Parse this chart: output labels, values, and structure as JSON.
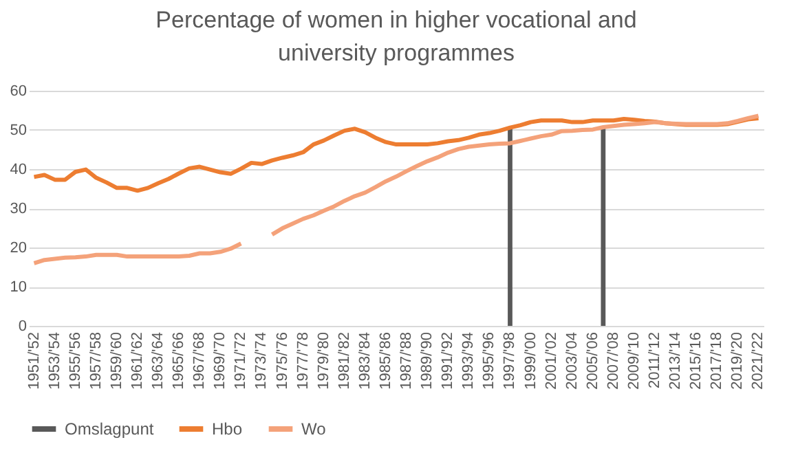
{
  "chart_data": {
    "type": "line",
    "title": "Percentage of women in higher vocational and university programmes",
    "categories": [
      "1951/'52",
      null,
      "1953/'54",
      null,
      "1955/'56",
      null,
      "1957/'58",
      null,
      "1959/'60",
      null,
      "1961/'62",
      null,
      "1963/'64",
      null,
      "1965/'66",
      null,
      "1967/'68",
      null,
      "1969/'70",
      null,
      "1971/'72",
      null,
      "1973/'74",
      null,
      "1975/'76",
      null,
      "1977/'78",
      null,
      "1979/'80",
      null,
      "1981/'82",
      null,
      "1983/'84",
      null,
      "1985/'86",
      null,
      "1987/'88",
      null,
      "1989/'90",
      null,
      "1991/'92",
      null,
      "1993/'94",
      null,
      "1995/'96",
      null,
      "1997/'98",
      null,
      "1999/'00",
      null,
      "2001/'02",
      null,
      "2003/'04",
      null,
      "2005/'06",
      null,
      "2007/'08",
      null,
      "2009/'10",
      null,
      "2011/'12",
      null,
      "2013/'14",
      null,
      "2015/'16",
      null,
      "2017/'18",
      null,
      "2019/'20",
      null,
      "2021/'22"
    ],
    "series": [
      {
        "name": "Omslagpunt",
        "type": "bar",
        "color": "#595959",
        "values": [
          null,
          null,
          null,
          null,
          null,
          null,
          null,
          null,
          null,
          null,
          null,
          null,
          null,
          null,
          null,
          null,
          null,
          null,
          null,
          null,
          null,
          null,
          null,
          null,
          null,
          null,
          null,
          null,
          null,
          null,
          null,
          null,
          null,
          null,
          null,
          null,
          null,
          null,
          null,
          null,
          null,
          null,
          null,
          null,
          null,
          null,
          50.5,
          null,
          null,
          null,
          null,
          null,
          null,
          null,
          null,
          50.5,
          null,
          null,
          null,
          null,
          null,
          null,
          null,
          null,
          null,
          null,
          null,
          null,
          null,
          null,
          null
        ]
      },
      {
        "name": "Hbo",
        "color": "#ed7d31",
        "values": [
          38.0,
          38.5,
          37.3,
          37.3,
          39.3,
          39.9,
          37.8,
          36.6,
          35.2,
          35.2,
          34.5,
          35.2,
          36.4,
          37.5,
          38.9,
          40.2,
          40.6,
          39.9,
          39.2,
          38.8,
          40.1,
          41.6,
          41.3,
          42.2,
          42.9,
          43.5,
          44.3,
          46.3,
          47.3,
          48.6,
          49.8,
          50.3,
          49.4,
          48.0,
          46.9,
          46.3,
          46.3,
          46.3,
          46.3,
          46.6,
          47.1,
          47.4,
          48.0,
          48.8,
          49.2,
          49.8,
          50.6,
          51.2,
          52.0,
          52.4,
          52.4,
          52.4,
          52.0,
          52.0,
          52.4,
          52.4,
          52.4,
          52.8,
          52.6,
          52.3,
          52.1,
          51.7,
          51.5,
          51.3,
          51.3,
          51.3,
          51.3,
          51.5,
          52.1,
          52.7,
          53.0
        ]
      },
      {
        "name": "Wo",
        "color": "#f4a27a",
        "values": [
          16.0,
          16.8,
          17.1,
          17.4,
          17.5,
          17.7,
          18.1,
          18.1,
          18.1,
          17.7,
          17.7,
          17.7,
          17.7,
          17.7,
          17.7,
          17.9,
          18.5,
          18.5,
          18.9,
          19.7,
          21.0,
          null,
          null,
          23.3,
          24.9,
          26.1,
          27.3,
          28.2,
          29.4,
          30.5,
          31.9,
          33.1,
          34.0,
          35.4,
          36.9,
          38.1,
          39.5,
          40.8,
          42.0,
          43.0,
          44.2,
          45.1,
          45.7,
          46.0,
          46.3,
          46.5,
          46.6,
          47.2,
          47.8,
          48.4,
          48.8,
          49.7,
          49.8,
          50.0,
          50.1,
          50.7,
          51.0,
          51.3,
          51.5,
          51.7,
          52.0,
          51.7,
          51.6,
          51.5,
          51.5,
          51.5,
          51.5,
          51.7,
          52.3,
          53.0,
          53.6
        ]
      }
    ],
    "ylim": [
      0,
      60
    ],
    "yticks": [
      0,
      10,
      20,
      30,
      40,
      50,
      60
    ],
    "grid": "y",
    "legend": "bottom"
  }
}
